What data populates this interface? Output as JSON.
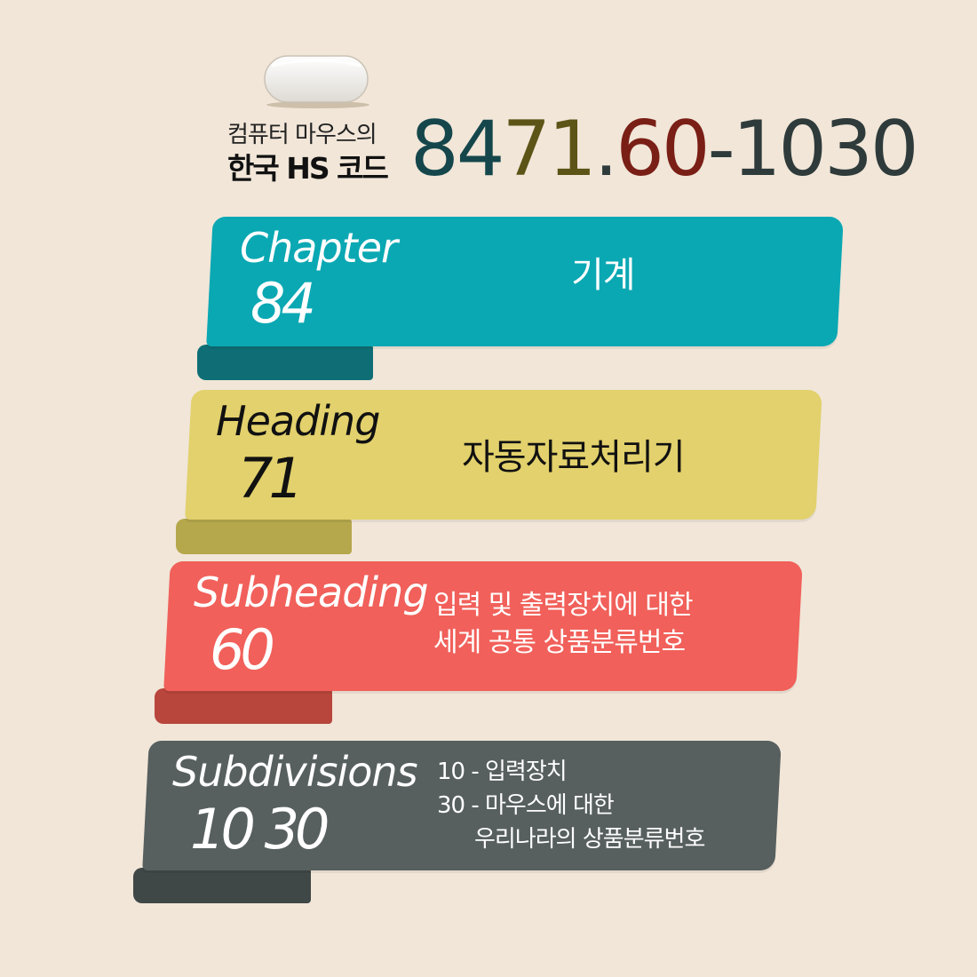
{
  "header": {
    "line1": "컴퓨터 마우스의",
    "line2": "한국 HS 코드",
    "code_parts": [
      {
        "text": "84",
        "color": "#15464b"
      },
      {
        "text": "71",
        "color": "#5c5316"
      },
      {
        "text": ".",
        "color": "#2f3b3b"
      },
      {
        "text": "60",
        "color": "#7a1f16"
      },
      {
        "text": "-1030",
        "color": "#2f3b3b"
      }
    ]
  },
  "levels": [
    {
      "label": "Chapter",
      "number": "84",
      "desc_lines": [
        "기계"
      ],
      "color": "#0aa8b3",
      "tail_color": "#0f6e75",
      "text_color": "#ffffff"
    },
    {
      "label": "Heading",
      "number": "71",
      "desc_lines": [
        "자동자료처리기"
      ],
      "color": "#e2d16c",
      "tail_color": "#b5a74b",
      "text_color": "#111111"
    },
    {
      "label": "Subheading",
      "number": "60",
      "desc_lines": [
        "입력 및 출력장치에 대한",
        "세계 공통 상품분류번호"
      ],
      "color": "#f1605a",
      "tail_color": "#b8463c",
      "text_color": "#ffffff"
    },
    {
      "label": "Subdivisions",
      "number": "10 30",
      "desc_lines": [
        "10 - 입력장치",
        "30 - 마우스에 대한",
        "우리나라의 상품분류번호"
      ],
      "color": "#575f5f",
      "tail_color": "#404747",
      "text_color": "#ffffff"
    }
  ]
}
